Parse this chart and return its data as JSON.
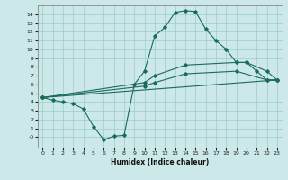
{
  "xlabel": "Humidex (Indice chaleur)",
  "ylabel": "",
  "xlim": [
    -0.5,
    23.5
  ],
  "ylim": [
    -1.2,
    15
  ],
  "background_color": "#cce8e8",
  "grid_color": "#99cccc",
  "line_color": "#1a6b5a",
  "xticks": [
    0,
    1,
    2,
    3,
    4,
    5,
    6,
    7,
    8,
    9,
    10,
    11,
    12,
    13,
    14,
    15,
    16,
    17,
    18,
    19,
    20,
    21,
    22,
    23
  ],
  "yticks": [
    0,
    1,
    2,
    3,
    4,
    5,
    6,
    7,
    8,
    9,
    10,
    11,
    12,
    13,
    14
  ],
  "line1_x": [
    0,
    1,
    2,
    3,
    4,
    5,
    6,
    7,
    8,
    9,
    10,
    11,
    12,
    13,
    14,
    15,
    16,
    17,
    18,
    19,
    20,
    21,
    22,
    23
  ],
  "line1_y": [
    4.5,
    4.2,
    4.0,
    3.8,
    3.2,
    1.2,
    -0.3,
    0.1,
    0.2,
    6.0,
    7.5,
    11.5,
    12.5,
    14.2,
    14.4,
    14.3,
    12.3,
    11.0,
    10.0,
    8.5,
    8.5,
    7.5,
    6.5,
    6.5
  ],
  "line2_x": [
    0,
    10,
    11,
    14,
    19,
    20,
    22,
    23
  ],
  "line2_y": [
    4.5,
    6.2,
    7.0,
    8.2,
    8.5,
    8.5,
    7.5,
    6.5
  ],
  "line3_x": [
    0,
    10,
    11,
    14,
    19,
    22,
    23
  ],
  "line3_y": [
    4.5,
    5.8,
    6.2,
    7.2,
    7.5,
    6.5,
    6.5
  ],
  "line4_x": [
    0,
    23
  ],
  "line4_y": [
    4.5,
    6.5
  ]
}
